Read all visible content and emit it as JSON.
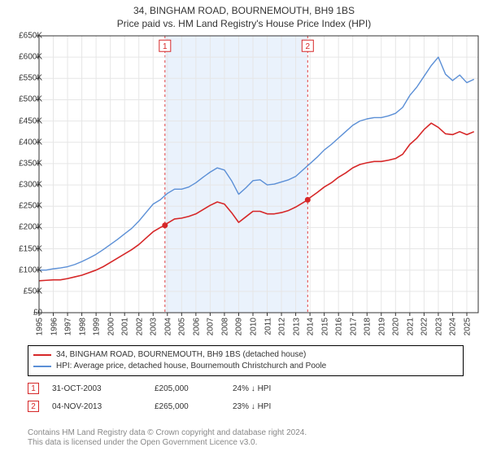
{
  "title": "34, BINGHAM ROAD, BOURNEMOUTH, BH9 1BS",
  "subtitle": "Price paid vs. HM Land Registry's House Price Index (HPI)",
  "chart": {
    "type": "line",
    "background_color": "#ffffff",
    "grid_color": "#e6e6e6",
    "axis_color": "#333333",
    "xlim": [
      1995,
      2025.8
    ],
    "ylim": [
      0,
      650000
    ],
    "ytick_step": 50000,
    "ytick_labels": [
      "£0",
      "£50K",
      "£100K",
      "£150K",
      "£200K",
      "£250K",
      "£300K",
      "£350K",
      "£400K",
      "£450K",
      "£500K",
      "£550K",
      "£600K",
      "£650K"
    ],
    "xtick_step": 1,
    "xtick_labels": [
      "1995",
      "1996",
      "1997",
      "1998",
      "1999",
      "2000",
      "2001",
      "2002",
      "2003",
      "2004",
      "2005",
      "2006",
      "2007",
      "2008",
      "2009",
      "2010",
      "2011",
      "2012",
      "2013",
      "2014",
      "2015",
      "2016",
      "2017",
      "2018",
      "2019",
      "2020",
      "2021",
      "2022",
      "2023",
      "2024",
      "2025"
    ],
    "title_fontsize": 12,
    "label_fontsize": 10,
    "highlight_band": {
      "x_start": 2003.83,
      "x_end": 2013.84,
      "fill_color": "#eaf2fc",
      "border_color": "#e04040",
      "border_dash": "3,3"
    },
    "series": [
      {
        "name": "price_paid",
        "label": "34, BINGHAM ROAD, BOURNEMOUTH, BH9 1BS (detached house)",
        "color": "#d62728",
        "line_width": 1.6,
        "data": [
          [
            1995.0,
            75000
          ],
          [
            1995.5,
            76000
          ],
          [
            1996.0,
            77000
          ],
          [
            1996.5,
            77000
          ],
          [
            1997.0,
            80000
          ],
          [
            1997.5,
            84000
          ],
          [
            1998.0,
            88000
          ],
          [
            1998.5,
            94000
          ],
          [
            1999.0,
            100000
          ],
          [
            1999.5,
            108000
          ],
          [
            2000.0,
            118000
          ],
          [
            2000.5,
            128000
          ],
          [
            2001.0,
            138000
          ],
          [
            2001.5,
            148000
          ],
          [
            2002.0,
            160000
          ],
          [
            2002.5,
            175000
          ],
          [
            2003.0,
            190000
          ],
          [
            2003.5,
            200000
          ],
          [
            2003.83,
            205000
          ],
          [
            2004.0,
            210000
          ],
          [
            2004.5,
            220000
          ],
          [
            2005.0,
            222000
          ],
          [
            2005.5,
            226000
          ],
          [
            2006.0,
            232000
          ],
          [
            2006.5,
            242000
          ],
          [
            2007.0,
            252000
          ],
          [
            2007.5,
            260000
          ],
          [
            2008.0,
            255000
          ],
          [
            2008.5,
            235000
          ],
          [
            2009.0,
            212000
          ],
          [
            2009.5,
            225000
          ],
          [
            2010.0,
            238000
          ],
          [
            2010.5,
            238000
          ],
          [
            2011.0,
            232000
          ],
          [
            2011.5,
            232000
          ],
          [
            2012.0,
            235000
          ],
          [
            2012.5,
            240000
          ],
          [
            2013.0,
            248000
          ],
          [
            2013.5,
            258000
          ],
          [
            2013.84,
            265000
          ],
          [
            2014.0,
            270000
          ],
          [
            2014.5,
            282000
          ],
          [
            2015.0,
            295000
          ],
          [
            2015.5,
            305000
          ],
          [
            2016.0,
            318000
          ],
          [
            2016.5,
            328000
          ],
          [
            2017.0,
            340000
          ],
          [
            2017.5,
            348000
          ],
          [
            2018.0,
            352000
          ],
          [
            2018.5,
            355000
          ],
          [
            2019.0,
            355000
          ],
          [
            2019.5,
            358000
          ],
          [
            2020.0,
            362000
          ],
          [
            2020.5,
            372000
          ],
          [
            2021.0,
            395000
          ],
          [
            2021.5,
            410000
          ],
          [
            2022.0,
            430000
          ],
          [
            2022.5,
            445000
          ],
          [
            2023.0,
            435000
          ],
          [
            2023.5,
            420000
          ],
          [
            2024.0,
            418000
          ],
          [
            2024.5,
            425000
          ],
          [
            2025.0,
            418000
          ],
          [
            2025.5,
            425000
          ]
        ]
      },
      {
        "name": "hpi",
        "label": "HPI: Average price, detached house, Bournemouth Christchurch and Poole",
        "color": "#5b8fd6",
        "line_width": 1.4,
        "data": [
          [
            1995.0,
            100000
          ],
          [
            1995.5,
            100000
          ],
          [
            1996.0,
            103000
          ],
          [
            1996.5,
            105000
          ],
          [
            1997.0,
            108000
          ],
          [
            1997.5,
            113000
          ],
          [
            1998.0,
            120000
          ],
          [
            1998.5,
            128000
          ],
          [
            1999.0,
            137000
          ],
          [
            1999.5,
            148000
          ],
          [
            2000.0,
            160000
          ],
          [
            2000.5,
            172000
          ],
          [
            2001.0,
            185000
          ],
          [
            2001.5,
            198000
          ],
          [
            2002.0,
            215000
          ],
          [
            2002.5,
            235000
          ],
          [
            2003.0,
            255000
          ],
          [
            2003.5,
            265000
          ],
          [
            2004.0,
            280000
          ],
          [
            2004.5,
            290000
          ],
          [
            2005.0,
            290000
          ],
          [
            2005.5,
            295000
          ],
          [
            2006.0,
            305000
          ],
          [
            2006.5,
            318000
          ],
          [
            2007.0,
            330000
          ],
          [
            2007.5,
            340000
          ],
          [
            2008.0,
            335000
          ],
          [
            2008.5,
            310000
          ],
          [
            2009.0,
            278000
          ],
          [
            2009.5,
            293000
          ],
          [
            2010.0,
            310000
          ],
          [
            2010.5,
            312000
          ],
          [
            2011.0,
            300000
          ],
          [
            2011.5,
            302000
          ],
          [
            2012.0,
            307000
          ],
          [
            2012.5,
            312000
          ],
          [
            2013.0,
            320000
          ],
          [
            2013.5,
            335000
          ],
          [
            2014.0,
            350000
          ],
          [
            2014.5,
            365000
          ],
          [
            2015.0,
            382000
          ],
          [
            2015.5,
            395000
          ],
          [
            2016.0,
            410000
          ],
          [
            2016.5,
            425000
          ],
          [
            2017.0,
            440000
          ],
          [
            2017.5,
            450000
          ],
          [
            2018.0,
            455000
          ],
          [
            2018.5,
            458000
          ],
          [
            2019.0,
            458000
          ],
          [
            2019.5,
            462000
          ],
          [
            2020.0,
            468000
          ],
          [
            2020.5,
            482000
          ],
          [
            2021.0,
            510000
          ],
          [
            2021.5,
            530000
          ],
          [
            2022.0,
            555000
          ],
          [
            2022.5,
            580000
          ],
          [
            2023.0,
            600000
          ],
          [
            2023.5,
            560000
          ],
          [
            2024.0,
            545000
          ],
          [
            2024.5,
            558000
          ],
          [
            2025.0,
            540000
          ],
          [
            2025.5,
            548000
          ]
        ]
      }
    ],
    "sale_markers": [
      {
        "n": "1",
        "x": 2003.83,
        "y": 205000,
        "label_y": 640000,
        "color": "#d62728"
      },
      {
        "n": "2",
        "x": 2013.84,
        "y": 265000,
        "label_y": 640000,
        "color": "#d62728"
      }
    ],
    "marker_radius": 3.5
  },
  "legend": {
    "items": [
      {
        "color": "#d62728",
        "series": 0
      },
      {
        "color": "#5b8fd6",
        "series": 1
      }
    ]
  },
  "sales": [
    {
      "n": "1",
      "color": "#d62728",
      "date": "31-OCT-2003",
      "price": "£205,000",
      "diff": "24% ↓ HPI"
    },
    {
      "n": "2",
      "color": "#d62728",
      "date": "04-NOV-2013",
      "price": "£265,000",
      "diff": "23% ↓ HPI"
    }
  ],
  "footer_line1": "Contains HM Land Registry data © Crown copyright and database right 2024.",
  "footer_line2": "This data is licensed under the Open Government Licence v3.0."
}
